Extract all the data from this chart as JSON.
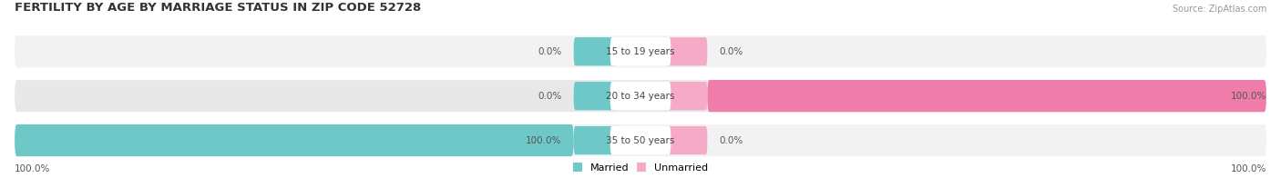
{
  "title": "FERTILITY BY AGE BY MARRIAGE STATUS IN ZIP CODE 52728",
  "source": "Source: ZipAtlas.com",
  "categories": [
    "15 to 19 years",
    "20 to 34 years",
    "35 to 50 years"
  ],
  "married_pct": [
    0.0,
    0.0,
    100.0
  ],
  "unmarried_pct": [
    0.0,
    100.0,
    0.0
  ],
  "married_color": "#6ec8c8",
  "unmarried_color": "#f07caa",
  "unmarried_color_light": "#f5aac8",
  "row_bg_color_light": "#f0f0f0",
  "row_bg_color_dark": "#e6e6e6",
  "title_fontsize": 9.5,
  "source_fontsize": 7,
  "label_fontsize": 7.5,
  "cat_fontsize": 7.5,
  "bottom_left_label": "100.0%",
  "bottom_right_label": "100.0%"
}
